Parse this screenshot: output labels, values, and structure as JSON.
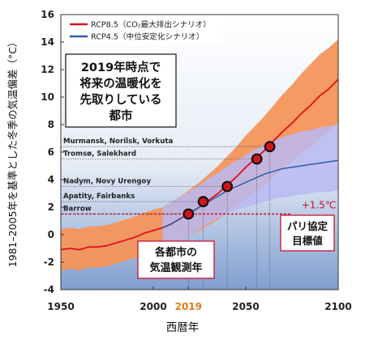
{
  "chart_data": {
    "type": "line",
    "ylabel": "1981–2005年を基準とした冬季の気温偏差（°C）",
    "xlabel": "西暦年",
    "xlim": [
      1950,
      2100
    ],
    "ylim": [
      -4,
      16
    ],
    "xticks": [
      1950,
      2000,
      2019,
      2050,
      2100
    ],
    "yticks": [
      -4,
      -2,
      0,
      2,
      4,
      6,
      8,
      10,
      12,
      14,
      16
    ],
    "highlight_year": 2019,
    "legend": {
      "placement": "top-left",
      "items": [
        {
          "label": "RCP8.5（CO₂最大排出シナリオ）",
          "color": "#e0101a"
        },
        {
          "label": "RCP4.5（中位安定化シナリオ）",
          "color": "#2b5fa8"
        }
      ]
    },
    "series": [
      {
        "name": "RCP8.5（CO₂最大排出シナリオ）",
        "color": "#e0101a",
        "band_color": "#f4955a",
        "x": [
          1950,
          1955,
          1960,
          1965,
          1970,
          1975,
          1980,
          1985,
          1990,
          1995,
          2000,
          2005,
          2010,
          2015,
          2020,
          2025,
          2030,
          2035,
          2040,
          2045,
          2050,
          2055,
          2060,
          2065,
          2070,
          2075,
          2080,
          2085,
          2090,
          2095,
          2100
        ],
        "values": [
          -1.1,
          -1.0,
          -1.1,
          -0.9,
          -0.9,
          -0.8,
          -0.6,
          -0.4,
          -0.2,
          0.1,
          0.3,
          0.5,
          0.8,
          1.2,
          1.6,
          2.0,
          2.5,
          3.0,
          3.6,
          4.2,
          4.9,
          5.5,
          6.1,
          6.8,
          7.5,
          8.1,
          8.8,
          9.4,
          10.1,
          10.6,
          11.3
        ],
        "upper": [
          0.4,
          0.5,
          0.4,
          0.6,
          0.6,
          0.7,
          0.9,
          1.1,
          1.3,
          1.6,
          1.8,
          2.0,
          2.4,
          2.8,
          3.3,
          3.8,
          4.4,
          5.0,
          5.7,
          6.4,
          7.2,
          7.9,
          8.6,
          9.4,
          10.2,
          10.9,
          11.7,
          12.4,
          13.1,
          13.6,
          14.2
        ],
        "lower": [
          -2.6,
          -2.5,
          -2.6,
          -2.4,
          -2.4,
          -2.3,
          -2.1,
          -1.9,
          -1.7,
          -1.4,
          -1.2,
          -1.0,
          -0.8,
          -0.4,
          0.0,
          0.3,
          0.7,
          1.1,
          1.6,
          2.1,
          2.6,
          3.1,
          3.6,
          4.2,
          4.8,
          5.3,
          5.9,
          6.4,
          7.0,
          7.5,
          8.1
        ]
      },
      {
        "name": "RCP4.5（中位安定化シナリオ）",
        "color": "#2b5fa8",
        "band_color": "#b9b9f2",
        "x": [
          2005,
          2010,
          2015,
          2020,
          2025,
          2030,
          2035,
          2040,
          2045,
          2050,
          2055,
          2060,
          2065,
          2070,
          2075,
          2080,
          2085,
          2090,
          2095,
          2100
        ],
        "values": [
          0.5,
          0.8,
          1.2,
          1.6,
          2.0,
          2.4,
          2.8,
          3.2,
          3.5,
          3.8,
          4.1,
          4.4,
          4.6,
          4.8,
          4.9,
          5.0,
          5.1,
          5.2,
          5.3,
          5.4
        ],
        "upper": [
          2.0,
          2.4,
          2.8,
          3.2,
          3.6,
          4.1,
          4.5,
          5.0,
          5.4,
          5.8,
          6.2,
          6.5,
          6.8,
          7.1,
          7.3,
          7.5,
          7.6,
          7.8,
          7.9,
          8.0
        ],
        "lower": [
          -1.0,
          -0.8,
          -0.4,
          0.0,
          0.4,
          0.8,
          1.2,
          1.5,
          1.8,
          2.0,
          2.2,
          2.4,
          2.6,
          2.7,
          2.8,
          2.9,
          3.0,
          3.1,
          3.1,
          3.2
        ]
      }
    ],
    "cities": [
      {
        "label": "Murmansk, Norilsk, Vorkuta",
        "y": 6.4,
        "year": 2063
      },
      {
        "label": "Tromsø, Salekhard",
        "y": 5.5,
        "year": 2056
      },
      {
        "label": "Nadym, Novy Urengoy",
        "y": 3.5,
        "year": 2040
      },
      {
        "label": "Apatity, Fairbanks",
        "y": 2.4,
        "year": 2027
      },
      {
        "label": "Barrow",
        "y": 1.5,
        "year": 2019
      }
    ],
    "paris_target": {
      "y": 1.5,
      "label": "+1.5℃"
    },
    "annotations": {
      "main_box": [
        "2019年時点で",
        "将来の温暖化を",
        "先取りしている",
        "都市"
      ],
      "observation_box": [
        "各都市の",
        "気温観測年"
      ],
      "paris_box": [
        "パリ協定",
        "目標値"
      ]
    }
  }
}
